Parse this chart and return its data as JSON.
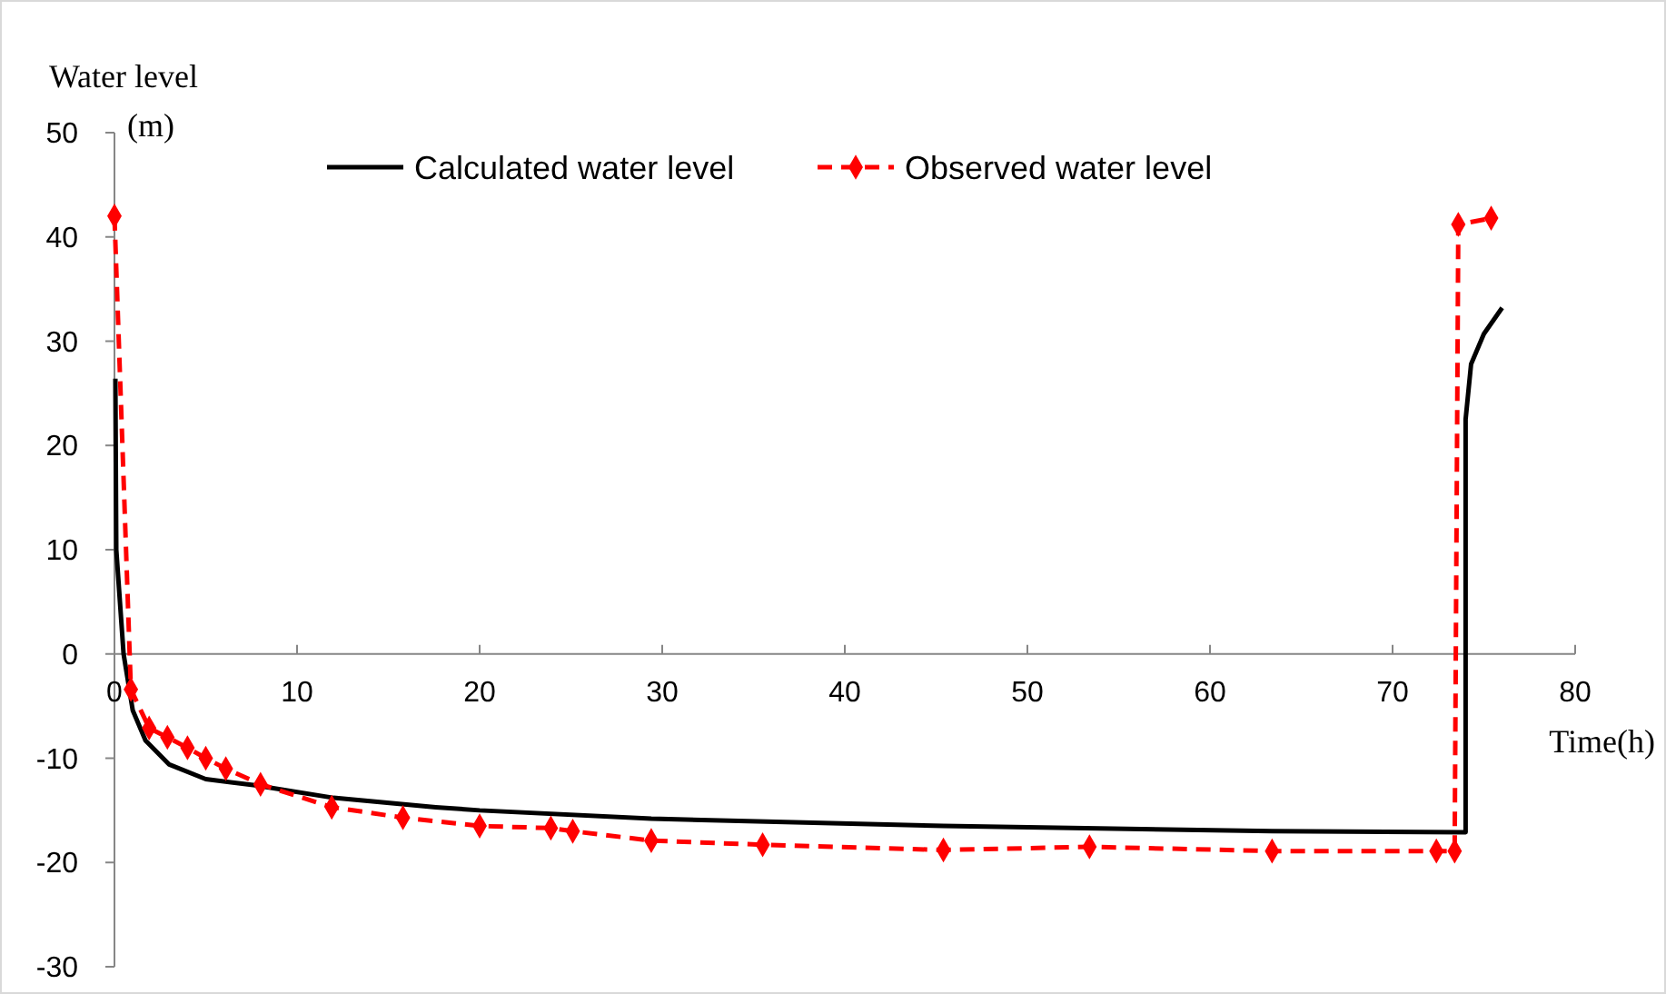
{
  "chart_data": {
    "type": "line",
    "xlabel": "Time(h)",
    "ylabel": "Water level (m)",
    "xlim": [
      0,
      80
    ],
    "xticks": [
      0,
      10,
      20,
      30,
      40,
      50,
      60,
      70,
      80
    ],
    "ylim": [
      -30,
      50
    ],
    "yticks": [
      -30,
      -20,
      -10,
      0,
      10,
      20,
      30,
      40,
      50
    ],
    "legend": "top",
    "grid": false,
    "series": [
      {
        "name": "Calculated water level",
        "color": "#000000",
        "line_style": "solid",
        "marker": "none",
        "x": [
          0.05,
          0.1,
          0.5,
          1.0,
          1.7,
          3.0,
          5.0,
          7.7,
          12,
          17.6,
          20,
          29.4,
          45.4,
          63.4,
          74.0,
          74.0,
          74.3,
          75.0,
          76.0
        ],
        "values": [
          26.4,
          10,
          0,
          -5.4,
          -8.3,
          -10.6,
          -12.0,
          -12.6,
          -13.8,
          -14.7,
          -15.0,
          -15.8,
          -16.5,
          -17.0,
          -17.1,
          22.5,
          27.8,
          30.7,
          33.2
        ]
      },
      {
        "name": "Observed water level",
        "color": "#ff0000",
        "line_style": "dashed",
        "marker": "diamond",
        "x": [
          0,
          0.9,
          1.9,
          2.9,
          4.0,
          5.0,
          6.1,
          8.0,
          11.9,
          15.8,
          20.0,
          23.9,
          25.1,
          29.4,
          35.5,
          45.4,
          53.4,
          63.4,
          72.4,
          73.4,
          73.6,
          75.4
        ],
        "values": [
          42,
          -3.4,
          -7.1,
          -8.0,
          -9.0,
          -10.0,
          -11.0,
          -12.5,
          -14.7,
          -15.7,
          -16.5,
          -16.7,
          -17.0,
          -17.9,
          -18.3,
          -18.8,
          -18.5,
          -18.9,
          -18.9,
          -18.9,
          41.2,
          41.8
        ]
      }
    ]
  }
}
